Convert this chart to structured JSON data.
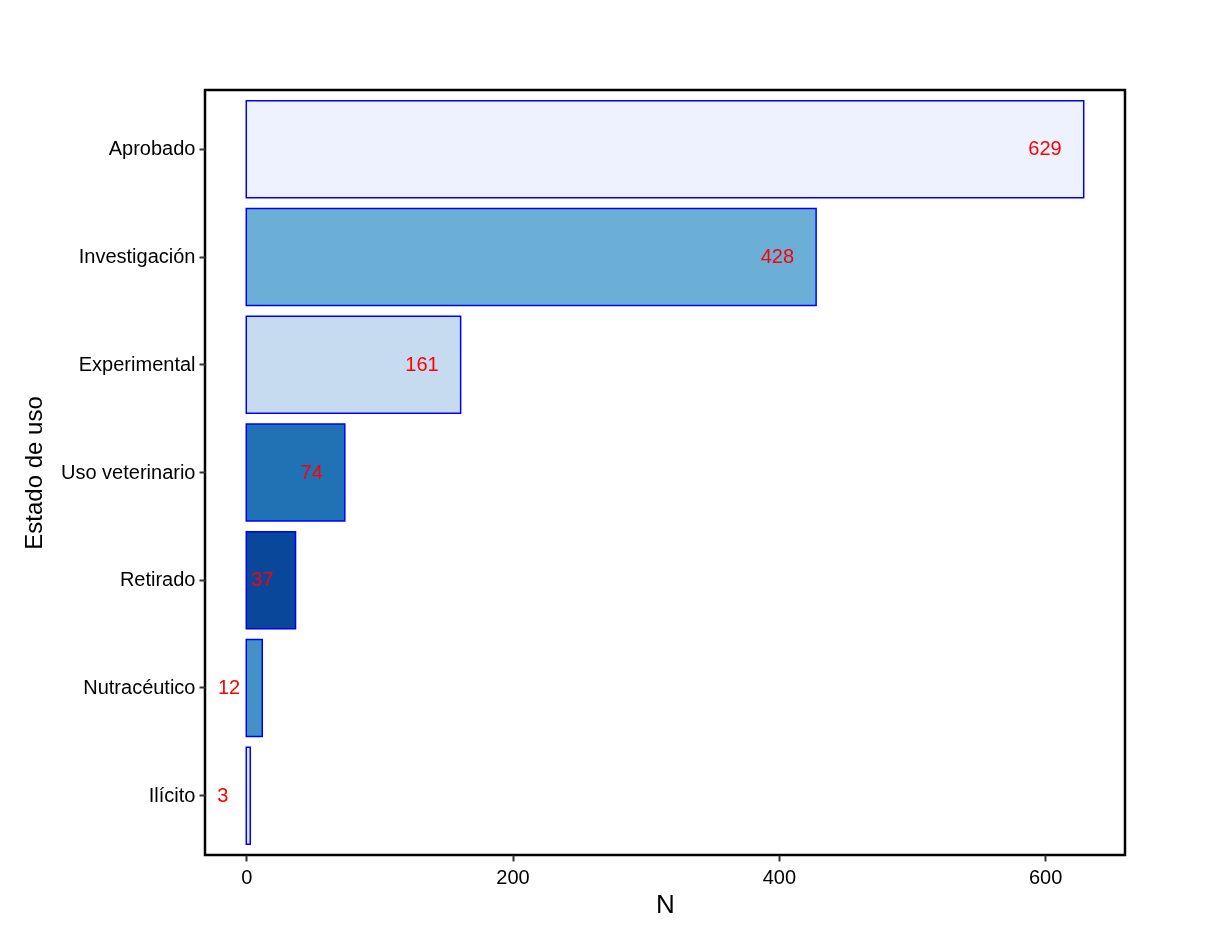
{
  "chart_data": {
    "type": "bar",
    "orientation": "horizontal",
    "xlabel": "N",
    "ylabel": "Estado de uso",
    "categories": [
      "Aprobado",
      "Investigación",
      "Experimental",
      "Uso veterinario",
      "Retirado",
      "Nutracéutico",
      "Ilícito"
    ],
    "values": [
      629,
      428,
      161,
      74,
      37,
      12,
      3
    ],
    "colors": [
      "#eef2fe",
      "#6baed6",
      "#c6dbef",
      "#2171b5",
      "#08479a",
      "#4292c6",
      "#deebf7"
    ],
    "xlim": [
      -31,
      660
    ],
    "xticks": [
      0,
      200,
      400,
      600
    ],
    "data_labels": true
  }
}
